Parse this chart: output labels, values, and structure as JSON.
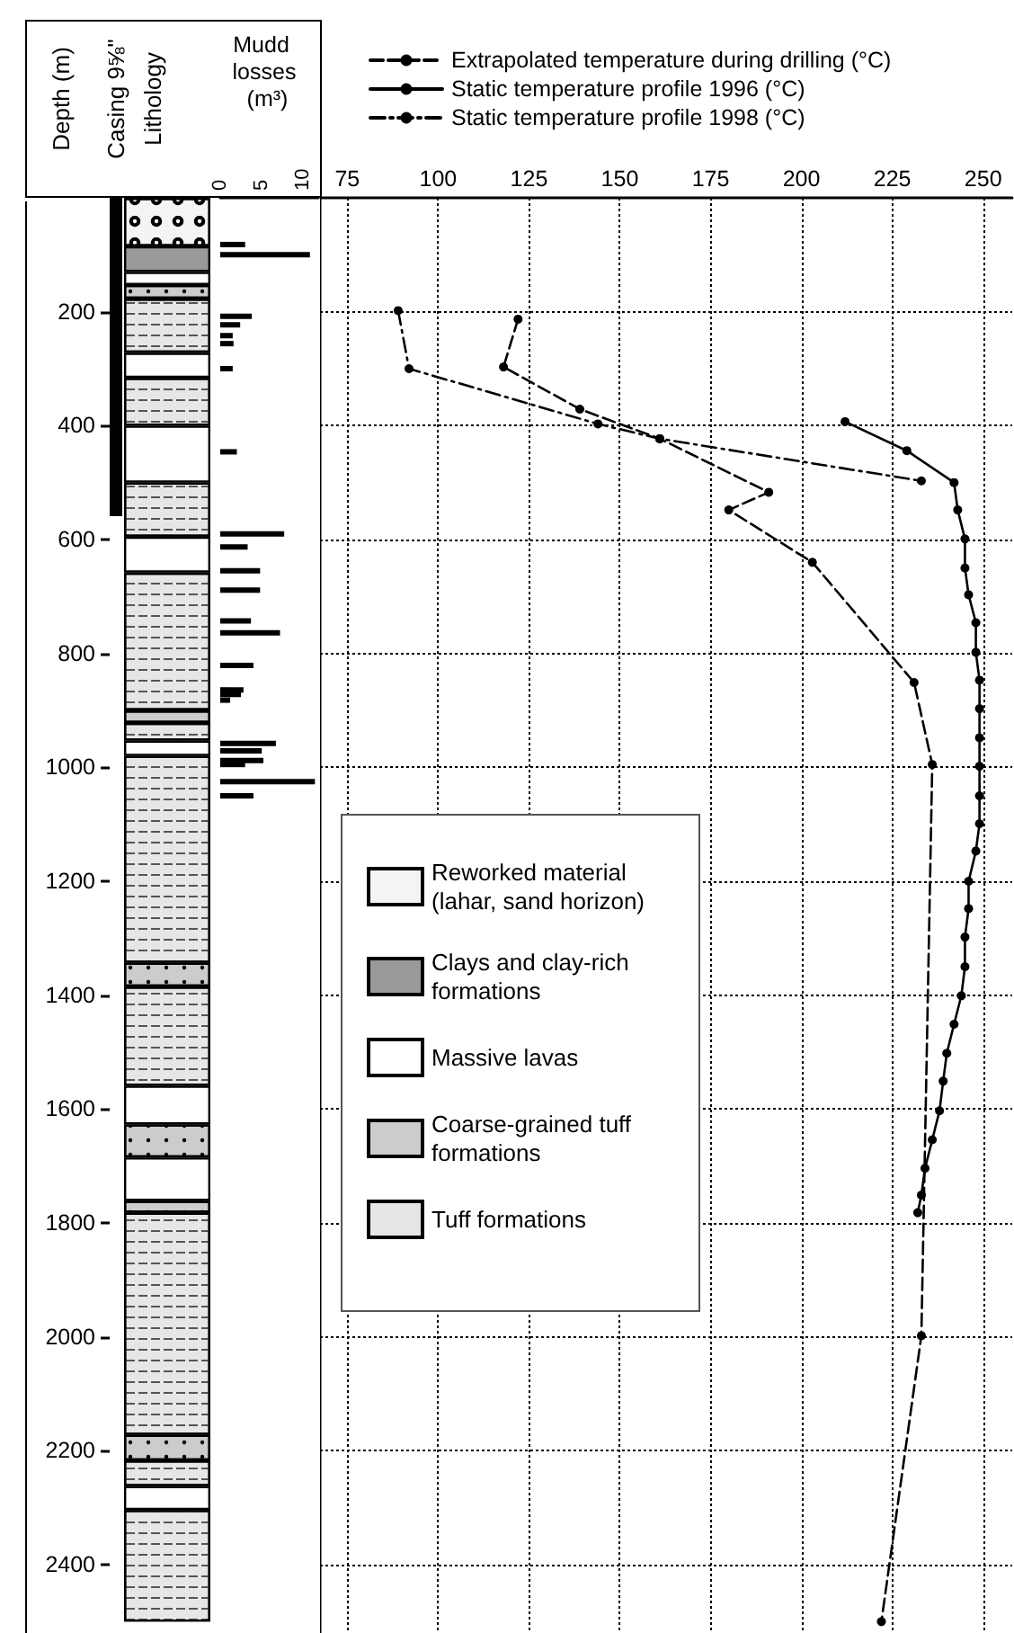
{
  "chart_data": [
    {
      "type": "bar",
      "stacked": true,
      "title": "Lithology",
      "ylabel": "Depth (m)",
      "categories": [
        null
      ],
      "ylim": [
        2520,
        0
      ],
      "yticks": [
        200,
        400,
        600,
        800,
        1000,
        1200,
        1400,
        1600,
        1800,
        2000,
        2200,
        2400
      ],
      "tick_labels": "y",
      "legend": "right",
      "annotations": [
        "Casing 9⅝\""
      ],
      "series": [
        {
          "name": "Reworked material (lahar, sand horizon)",
          "color": "#f4f4f4",
          "values": [
            85
          ]
        },
        {
          "name": "Clays and clay-rich formations",
          "color": "#999999",
          "values": [
            45
          ]
        },
        {
          "name": "Massive lavas",
          "color": "#ffffff",
          "values": [
            23
          ]
        },
        {
          "name": "Coarse-grained tuff formations",
          "color": "#cccccc",
          "values": [
            24
          ]
        },
        {
          "name": "Tuff formations",
          "color": "#e6e6e6",
          "values": [
            95
          ]
        },
        {
          "color": "#ffffff",
          "values": [
            44
          ]
        },
        {
          "color": "#e6e6e6",
          "values": [
            84
          ]
        },
        {
          "color": "#ffffff",
          "values": [
            100
          ]
        },
        {
          "color": "#e6e6e6",
          "values": [
            95
          ]
        },
        {
          "color": "#ffffff",
          "values": [
            63
          ]
        },
        {
          "color": "#e6e6e6",
          "values": [
            242
          ]
        },
        {
          "color": "#cccccc",
          "values": [
            22
          ]
        },
        {
          "color": "#e6e6e6",
          "values": [
            31
          ]
        },
        {
          "color": "#ffffff",
          "values": [
            27
          ]
        },
        {
          "color": "#e6e6e6",
          "values": [
            363
          ]
        },
        {
          "color": "#cccccc",
          "values": [
            42
          ]
        },
        {
          "color": "#e6e6e6",
          "values": [
            174
          ]
        },
        {
          "color": "#ffffff",
          "values": [
            68
          ]
        },
        {
          "color": "#cccccc",
          "values": [
            58
          ]
        },
        {
          "color": "#ffffff",
          "values": [
            76
          ]
        },
        {
          "color": "#cccccc",
          "values": [
            21
          ]
        },
        {
          "color": "#e6e6e6",
          "values": [
            390
          ]
        },
        {
          "color": "#cccccc",
          "values": [
            45
          ]
        },
        {
          "color": "#e6e6e6",
          "values": [
            45
          ]
        },
        {
          "color": "#ffffff",
          "values": [
            42
          ]
        },
        {
          "color": "#e6e6e6",
          "values": [
            196
          ]
        }
      ]
    },
    {
      "type": "bar",
      "orientation": "horizontal",
      "xlabel": "Mudd losses (m³)",
      "x": [
        82,
        100,
        208,
        223,
        242,
        256,
        300,
        446,
        590,
        613,
        655,
        689,
        743,
        764,
        821,
        864,
        872,
        882,
        958,
        971,
        988,
        995,
        1025,
        1050
      ],
      "values": [
        3.0,
        10.8,
        3.8,
        2.4,
        1.5,
        1.6,
        1.5,
        2.0,
        7.7,
        3.3,
        4.8,
        4.8,
        3.7,
        7.2,
        4.0,
        2.8,
        2.5,
        1.2,
        6.7,
        5.0,
        5.2,
        3.0,
        11.4,
        4.0
      ],
      "color": "#000000",
      "xlim": [
        0,
        11.8
      ],
      "xticks": [
        0,
        5,
        10
      ],
      "ylim": [
        2520,
        0
      ],
      "tick_labels": "x"
    },
    {
      "type": "line",
      "xlim": [
        67.5,
        258
      ],
      "xticks": [
        75,
        100,
        125,
        150,
        175,
        200,
        225,
        250
      ],
      "ylim": [
        2520,
        0
      ],
      "yticks": [
        200,
        400,
        600,
        800,
        1000,
        1200,
        1400,
        1600,
        1800,
        2000,
        2200,
        2400
      ],
      "tick_labels": "x",
      "grid": true,
      "legend": "top",
      "marker": "circle",
      "series": [
        {
          "name": "Extrapolated temperature during drilling (°C)",
          "color": "#000000",
          "line_style": "dashed",
          "x": [
            122,
            118,
            139,
            161,
            191,
            180,
            203,
            231,
            236,
            233,
            222
          ],
          "values": [
            213,
            297,
            371,
            423,
            517,
            548,
            640,
            851,
            995,
            1998,
            2500
          ]
        },
        {
          "name": "Static temperature profile 1996 (°C)",
          "color": "#000000",
          "line_style": "solid",
          "x": [
            212,
            229,
            242,
            243,
            245,
            245,
            246,
            248,
            248,
            249,
            249,
            249,
            249,
            249,
            249,
            248,
            246,
            246,
            245,
            245,
            244,
            242,
            240,
            239,
            238,
            236,
            234,
            233,
            232
          ],
          "values": [
            393,
            444,
            500,
            548,
            599,
            650,
            697,
            746,
            798,
            847,
            897,
            948,
            998,
            1050,
            1099,
            1147,
            1200,
            1248,
            1298,
            1350,
            1401,
            1451,
            1502,
            1551,
            1603,
            1654,
            1704,
            1751,
            1782
          ]
        },
        {
          "name": "Static temperature profile 1998 (°C)",
          "color": "#000000",
          "line_style": "dotted",
          "x": [
            89,
            92,
            144,
            161,
            233
          ],
          "values": [
            198,
            300,
            397,
            423,
            497
          ]
        }
      ]
    }
  ]
}
